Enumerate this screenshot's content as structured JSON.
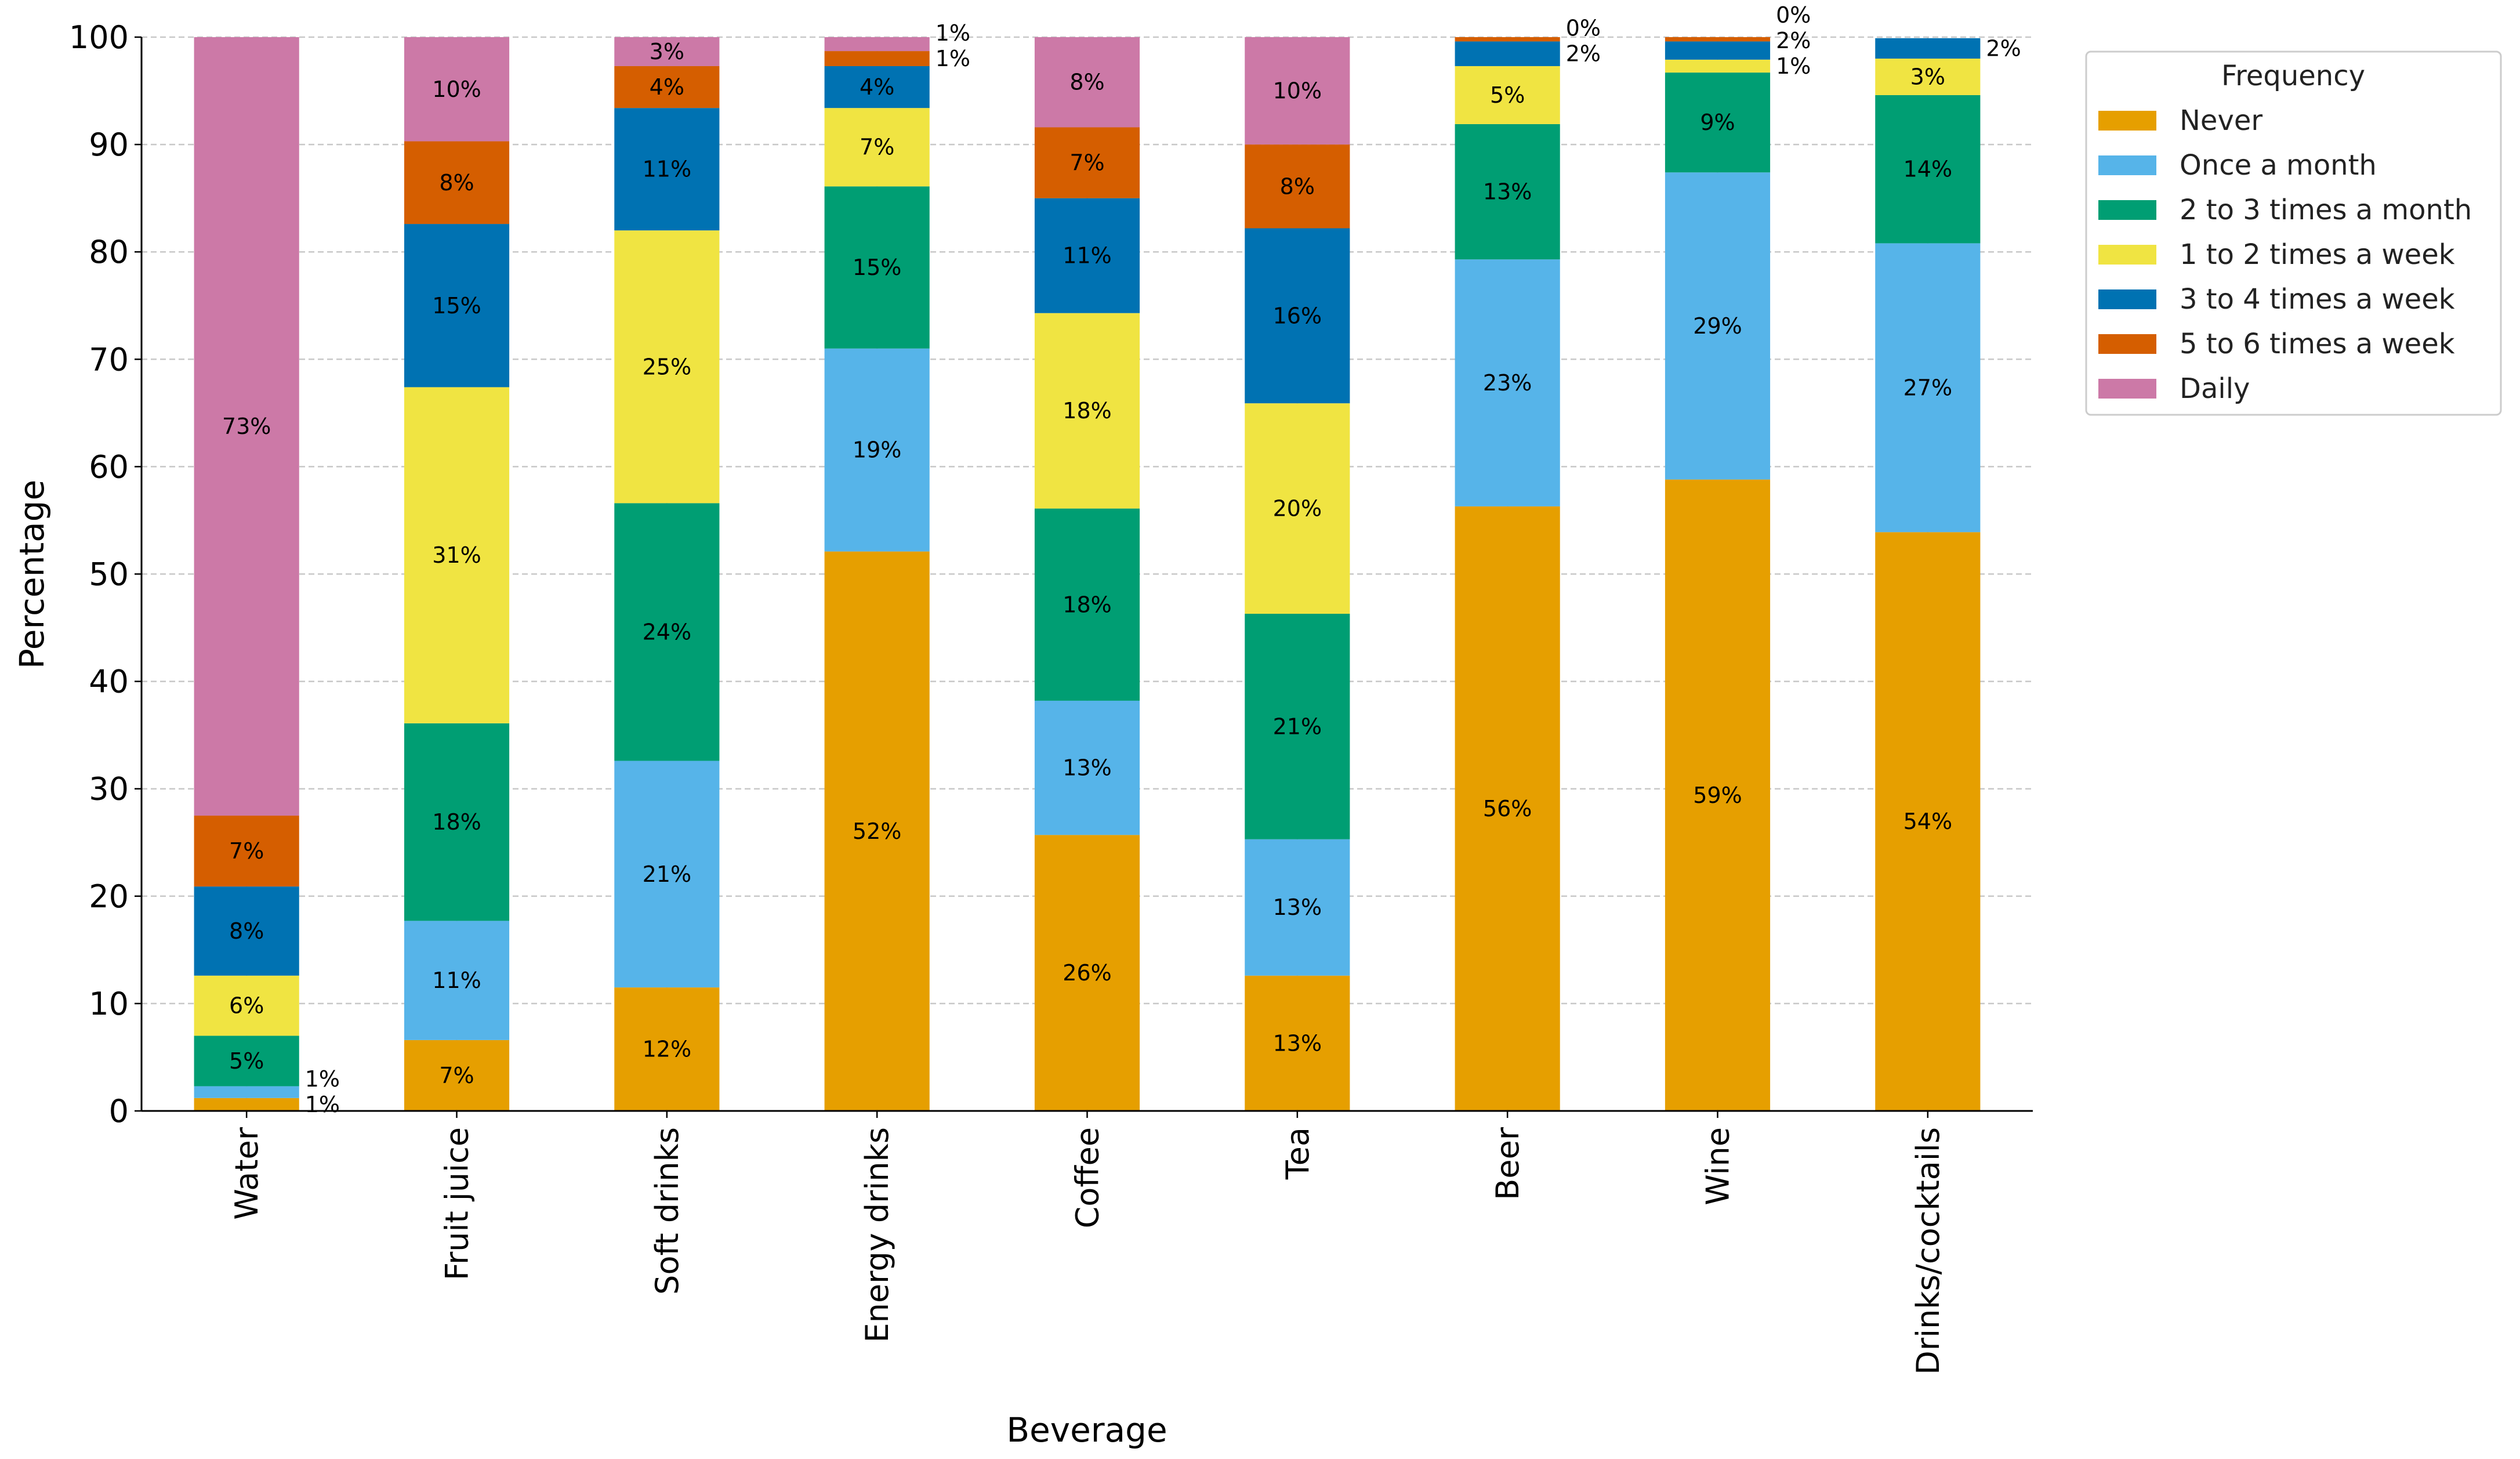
{
  "chart_data": {
    "type": "bar",
    "stacked": true,
    "title": "",
    "xlabel": "Beverage",
    "ylabel": "Percentage",
    "ylim": [
      0,
      100
    ],
    "yticks": [
      0,
      10,
      20,
      30,
      40,
      50,
      60,
      70,
      80,
      90,
      100
    ],
    "grid": true,
    "legend_title": "Frequency",
    "legend_placement": "outside-top-right",
    "categories": [
      "Water",
      "Fruit juice",
      "Soft drinks",
      "Energy drinks",
      "Coffee",
      "Tea",
      "Beer",
      "Wine",
      "Drinks/cocktails"
    ],
    "series": [
      {
        "name": "Never",
        "color": "#E69F00",
        "values": [
          1.2,
          6.6,
          11.5,
          52.1,
          25.7,
          12.6,
          56.3,
          58.8,
          53.9
        ]
      },
      {
        "name": "Once a month",
        "color": "#56B4E9",
        "values": [
          1.1,
          11.1,
          21.1,
          18.9,
          12.5,
          12.7,
          23.0,
          28.6,
          26.9
        ]
      },
      {
        "name": "2 to 3 times a month",
        "color": "#009E73",
        "values": [
          4.7,
          18.4,
          24.0,
          15.1,
          17.9,
          21.0,
          12.6,
          9.3,
          13.8
        ]
      },
      {
        "name": "1 to 2 times a week",
        "color": "#F0E442",
        "values": [
          5.6,
          31.3,
          25.4,
          7.3,
          18.2,
          19.6,
          5.4,
          1.2,
          3.4
        ]
      },
      {
        "name": "3 to 4 times a week",
        "color": "#0072B2",
        "values": [
          8.3,
          15.2,
          11.4,
          3.9,
          10.7,
          16.3,
          2.3,
          1.7,
          1.9
        ]
      },
      {
        "name": "5 to 6 times a week",
        "color": "#D55E00",
        "values": [
          6.6,
          7.7,
          3.9,
          1.4,
          6.6,
          7.8,
          0.4,
          0.4,
          0
        ]
      },
      {
        "name": "Daily",
        "color": "#CC79A7",
        "values": [
          72.5,
          9.7,
          2.7,
          1.3,
          8.4,
          10.0,
          0,
          0,
          0
        ]
      }
    ]
  }
}
